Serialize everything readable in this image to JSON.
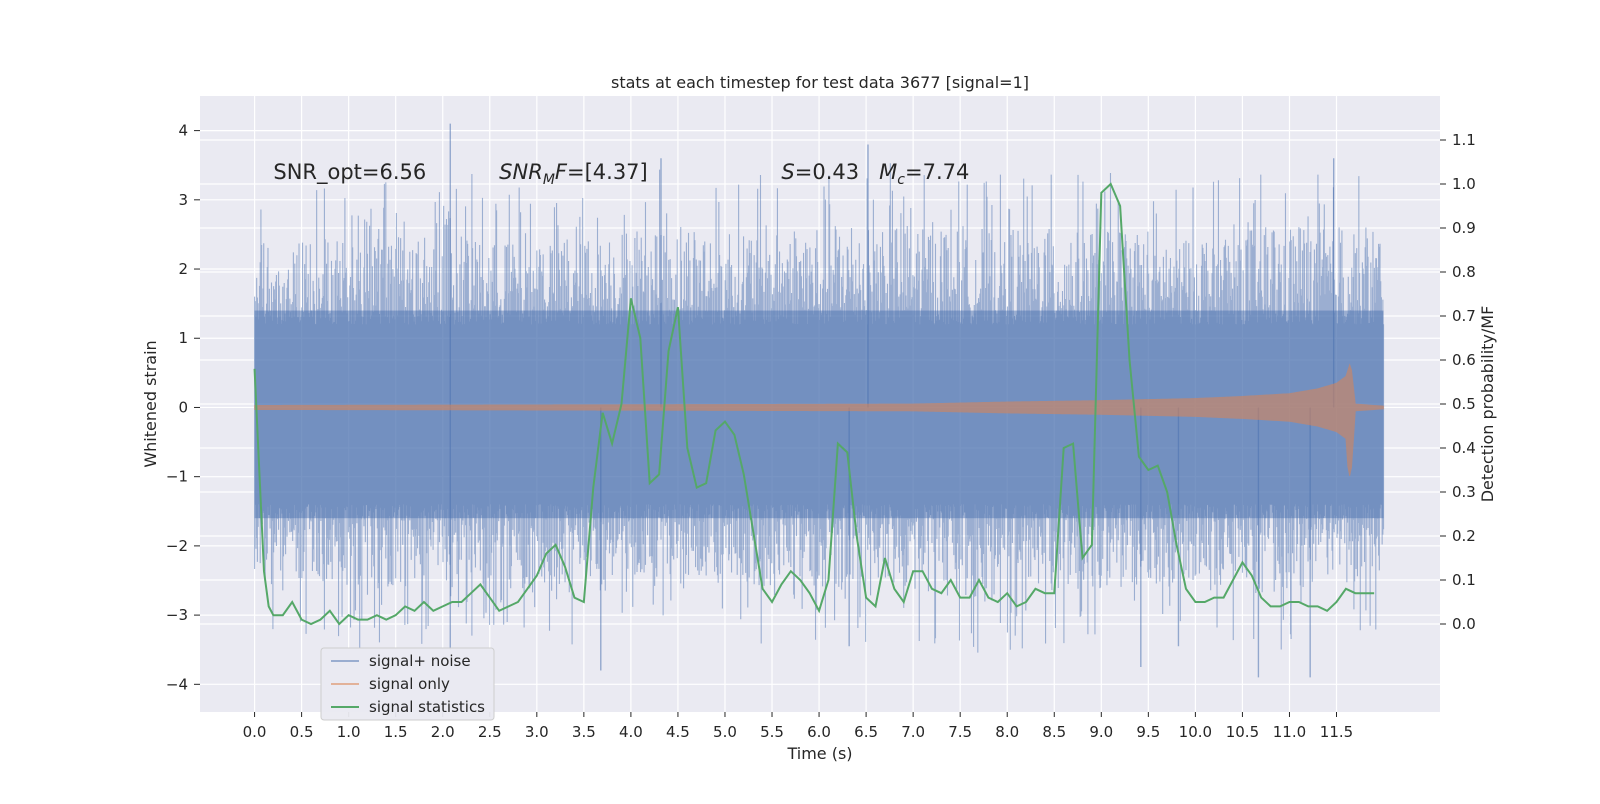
{
  "chart_data": {
    "type": "line",
    "title": "stats at each timestep for test data 3677 [signal=1]",
    "xlabel": "Time (s)",
    "ylabel_left": "Whitened strain",
    "ylabel_right": "Detection probability/MF",
    "xlim": [
      -0.58,
      12.6
    ],
    "ylim_left": [
      -4.4,
      4.5
    ],
    "ylim_right": [
      -0.2,
      1.2
    ],
    "x_ticks": [
      0.0,
      0.5,
      1.0,
      1.5,
      2.0,
      2.5,
      3.0,
      3.5,
      4.0,
      4.5,
      5.0,
      5.5,
      6.0,
      6.5,
      7.0,
      7.5,
      8.0,
      8.5,
      9.0,
      9.5,
      10.0,
      10.5,
      11.0,
      11.5
    ],
    "y_ticks_left": [
      4,
      3,
      2,
      1,
      0,
      -1,
      -2,
      -3,
      -4
    ],
    "y_ticks_right": [
      1.1,
      1.0,
      0.9,
      0.8,
      0.7,
      0.6,
      0.5,
      0.4,
      0.3,
      0.2,
      0.1,
      0.0
    ],
    "grid": true,
    "legend_position": "lower-left",
    "annotations": [
      {
        "text": "SNR_opt=6.56",
        "x": 0.2,
        "y": 3.3
      },
      {
        "text": "SNR_MF=[4.37]",
        "x": 2.6,
        "y": 3.3
      },
      {
        "text": "S=0.43   M_c=7.74",
        "x": 5.6,
        "y": 3.3
      }
    ],
    "series": [
      {
        "name": "signal+ noise",
        "axis": "left",
        "color": "#4c72b0",
        "x_range": [
          0.0,
          12.0
        ],
        "envelope_upper": [
          2.5,
          2.6,
          2.7,
          2.6,
          2.8,
          2.7,
          2.9,
          2.7,
          2.8,
          2.6,
          2.8,
          2.7
        ],
        "envelope_lower": [
          -2.6,
          -2.8,
          -2.7,
          -2.9,
          -2.6,
          -2.8,
          -2.7,
          -2.9,
          -2.8,
          -2.7,
          -2.8,
          -2.6
        ],
        "spikes": [
          {
            "x": 2.08,
            "y": 4.1
          },
          {
            "x": 6.52,
            "y": 3.8
          },
          {
            "x": 11.47,
            "y": 3.6
          },
          {
            "x": 4.32,
            "y": 3.6
          },
          {
            "x": 11.22,
            "y": -3.9
          },
          {
            "x": 10.67,
            "y": -3.9
          },
          {
            "x": 9.42,
            "y": -3.75
          },
          {
            "x": 3.68,
            "y": -3.8
          },
          {
            "x": 2.08,
            "y": -3.5
          },
          {
            "x": 6.32,
            "y": -3.45
          },
          {
            "x": 9.82,
            "y": -3.45
          }
        ]
      },
      {
        "name": "signal only",
        "axis": "left",
        "color": "#dd8452",
        "x": [
          0.0,
          4.0,
          7.0,
          8.0,
          9.0,
          10.0,
          10.5,
          11.0,
          11.3,
          11.5,
          11.6,
          11.65,
          11.7,
          12.0
        ],
        "amplitude": [
          0.03,
          0.04,
          0.05,
          0.08,
          0.1,
          0.13,
          0.16,
          0.2,
          0.27,
          0.35,
          0.45,
          0.66,
          0.05,
          0.02
        ]
      },
      {
        "name": "signal statistics",
        "axis": "right",
        "color": "#55a868",
        "x": [
          0.0,
          0.05,
          0.1,
          0.15,
          0.2,
          0.3,
          0.4,
          0.5,
          0.6,
          0.7,
          0.8,
          0.9,
          1.0,
          1.1,
          1.2,
          1.3,
          1.4,
          1.5,
          1.6,
          1.7,
          1.8,
          1.9,
          2.0,
          2.1,
          2.2,
          2.3,
          2.4,
          2.5,
          2.6,
          2.7,
          2.8,
          2.9,
          3.0,
          3.1,
          3.2,
          3.3,
          3.4,
          3.5,
          3.6,
          3.7,
          3.8,
          3.9,
          4.0,
          4.1,
          4.2,
          4.3,
          4.4,
          4.5,
          4.6,
          4.7,
          4.8,
          4.9,
          5.0,
          5.1,
          5.2,
          5.3,
          5.4,
          5.5,
          5.6,
          5.7,
          5.8,
          5.9,
          6.0,
          6.1,
          6.2,
          6.3,
          6.4,
          6.5,
          6.6,
          6.7,
          6.8,
          6.9,
          7.0,
          7.1,
          7.2,
          7.3,
          7.4,
          7.5,
          7.6,
          7.7,
          7.8,
          7.9,
          8.0,
          8.1,
          8.2,
          8.3,
          8.4,
          8.5,
          8.6,
          8.7,
          8.8,
          8.9,
          9.0,
          9.1,
          9.2,
          9.3,
          9.4,
          9.5,
          9.6,
          9.7,
          9.8,
          9.9,
          10.0,
          10.1,
          10.2,
          10.3,
          10.4,
          10.5,
          10.6,
          10.7,
          10.8,
          10.9,
          11.0,
          11.1,
          11.2,
          11.3,
          11.4,
          11.5,
          11.6,
          11.7,
          11.8,
          11.9
        ],
        "values": [
          0.58,
          0.35,
          0.12,
          0.04,
          0.02,
          0.02,
          0.05,
          0.01,
          0.0,
          0.01,
          0.03,
          0.0,
          0.02,
          0.01,
          0.01,
          0.02,
          0.01,
          0.02,
          0.04,
          0.03,
          0.05,
          0.03,
          0.04,
          0.05,
          0.05,
          0.07,
          0.09,
          0.06,
          0.03,
          0.04,
          0.05,
          0.08,
          0.11,
          0.16,
          0.18,
          0.13,
          0.06,
          0.05,
          0.31,
          0.48,
          0.41,
          0.5,
          0.74,
          0.65,
          0.32,
          0.34,
          0.62,
          0.72,
          0.4,
          0.31,
          0.32,
          0.44,
          0.46,
          0.43,
          0.34,
          0.21,
          0.08,
          0.05,
          0.09,
          0.12,
          0.1,
          0.07,
          0.03,
          0.1,
          0.41,
          0.39,
          0.2,
          0.06,
          0.04,
          0.15,
          0.08,
          0.05,
          0.12,
          0.12,
          0.08,
          0.07,
          0.1,
          0.06,
          0.06,
          0.1,
          0.06,
          0.05,
          0.07,
          0.04,
          0.05,
          0.08,
          0.07,
          0.07,
          0.4,
          0.41,
          0.15,
          0.18,
          0.98,
          1.0,
          0.95,
          0.6,
          0.38,
          0.35,
          0.36,
          0.3,
          0.18,
          0.08,
          0.05,
          0.05,
          0.06,
          0.06,
          0.1,
          0.14,
          0.11,
          0.06,
          0.04,
          0.04,
          0.05,
          0.05,
          0.04,
          0.04,
          0.03,
          0.05,
          0.08,
          0.07,
          0.07,
          0.07
        ]
      }
    ]
  }
}
